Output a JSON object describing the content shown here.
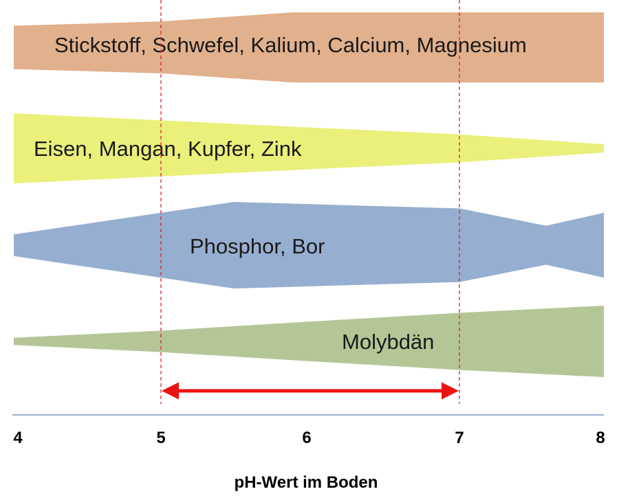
{
  "chart_data": {
    "type": "other",
    "x_axis": {
      "title": "pH-Wert im Boden",
      "range": [
        4,
        8
      ],
      "ticks": [
        {
          "value": 4,
          "label": "4"
        },
        {
          "value": 5,
          "label": "5"
        },
        {
          "value": 6,
          "label": "6"
        },
        {
          "value": 7,
          "label": "7"
        },
        {
          "value": 8,
          "label": "8"
        }
      ]
    },
    "reference_lines": [
      5,
      7
    ],
    "optimal_range": {
      "from": 5,
      "to": 7,
      "color": "#ee1111"
    },
    "bands": [
      {
        "label": "Stickstoff, Schwefel, Kalium, Calcium, Magnesium",
        "color": "#e1b08c",
        "availability": [
          [
            4,
            0.62
          ],
          [
            4.5,
            0.68
          ],
          [
            5,
            0.74
          ],
          [
            5.9,
            1.0
          ],
          [
            7,
            1.0
          ],
          [
            8,
            1.0
          ]
        ]
      },
      {
        "label": "Eisen, Mangan, Kupfer, Zink",
        "color": "#eaf07a",
        "availability": [
          [
            4,
            1.0
          ],
          [
            5,
            0.8
          ],
          [
            6,
            0.6
          ],
          [
            7,
            0.4
          ],
          [
            8,
            0.12
          ]
        ]
      },
      {
        "label": "Phosphor, Bor",
        "color": "#96aed0",
        "availability": [
          [
            4,
            0.25
          ],
          [
            5,
            0.75
          ],
          [
            5.5,
            1.0
          ],
          [
            7,
            0.85
          ],
          [
            7.6,
            0.45
          ],
          [
            8,
            0.75
          ]
        ]
      },
      {
        "label": "Molybdän",
        "color": "#b4c696",
        "availability": [
          [
            4,
            0.1
          ],
          [
            5,
            0.3
          ],
          [
            6,
            0.55
          ],
          [
            7,
            0.8
          ],
          [
            8,
            1.0
          ]
        ]
      }
    ]
  }
}
